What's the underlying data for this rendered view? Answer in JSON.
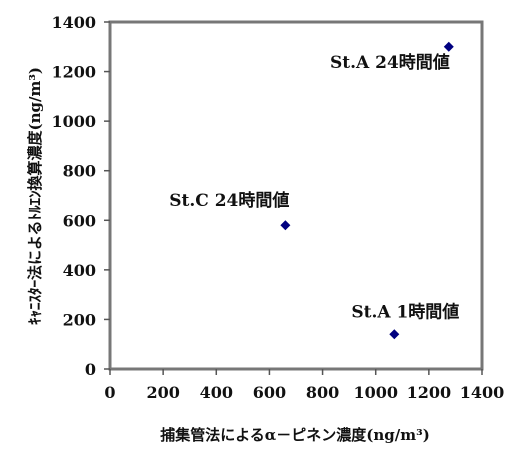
{
  "chart_data": {
    "type": "scatter",
    "xlabel": "捕集管法によるα－ピネン濃度(ng/m³)",
    "ylabel": "ｷｬﾆｽﾀｰ法によるﾄﾙｴﾝ換算濃度(ng/m³)",
    "xlim": [
      0,
      1400
    ],
    "ylim": [
      0,
      1400
    ],
    "x_ticks": [
      0,
      200,
      400,
      600,
      800,
      1000,
      1200,
      1400
    ],
    "y_ticks": [
      0,
      200,
      400,
      600,
      800,
      1000,
      1200,
      1400
    ],
    "grid": false,
    "marker": "diamond",
    "marker_color": "#000080",
    "points": [
      {
        "x": 1275,
        "y": 1300,
        "label": "St.A  24時間値"
      },
      {
        "x": 660,
        "y": 580,
        "label": "St.C  24時間値"
      },
      {
        "x": 1070,
        "y": 140,
        "label": "St.A  1時間値"
      }
    ]
  }
}
